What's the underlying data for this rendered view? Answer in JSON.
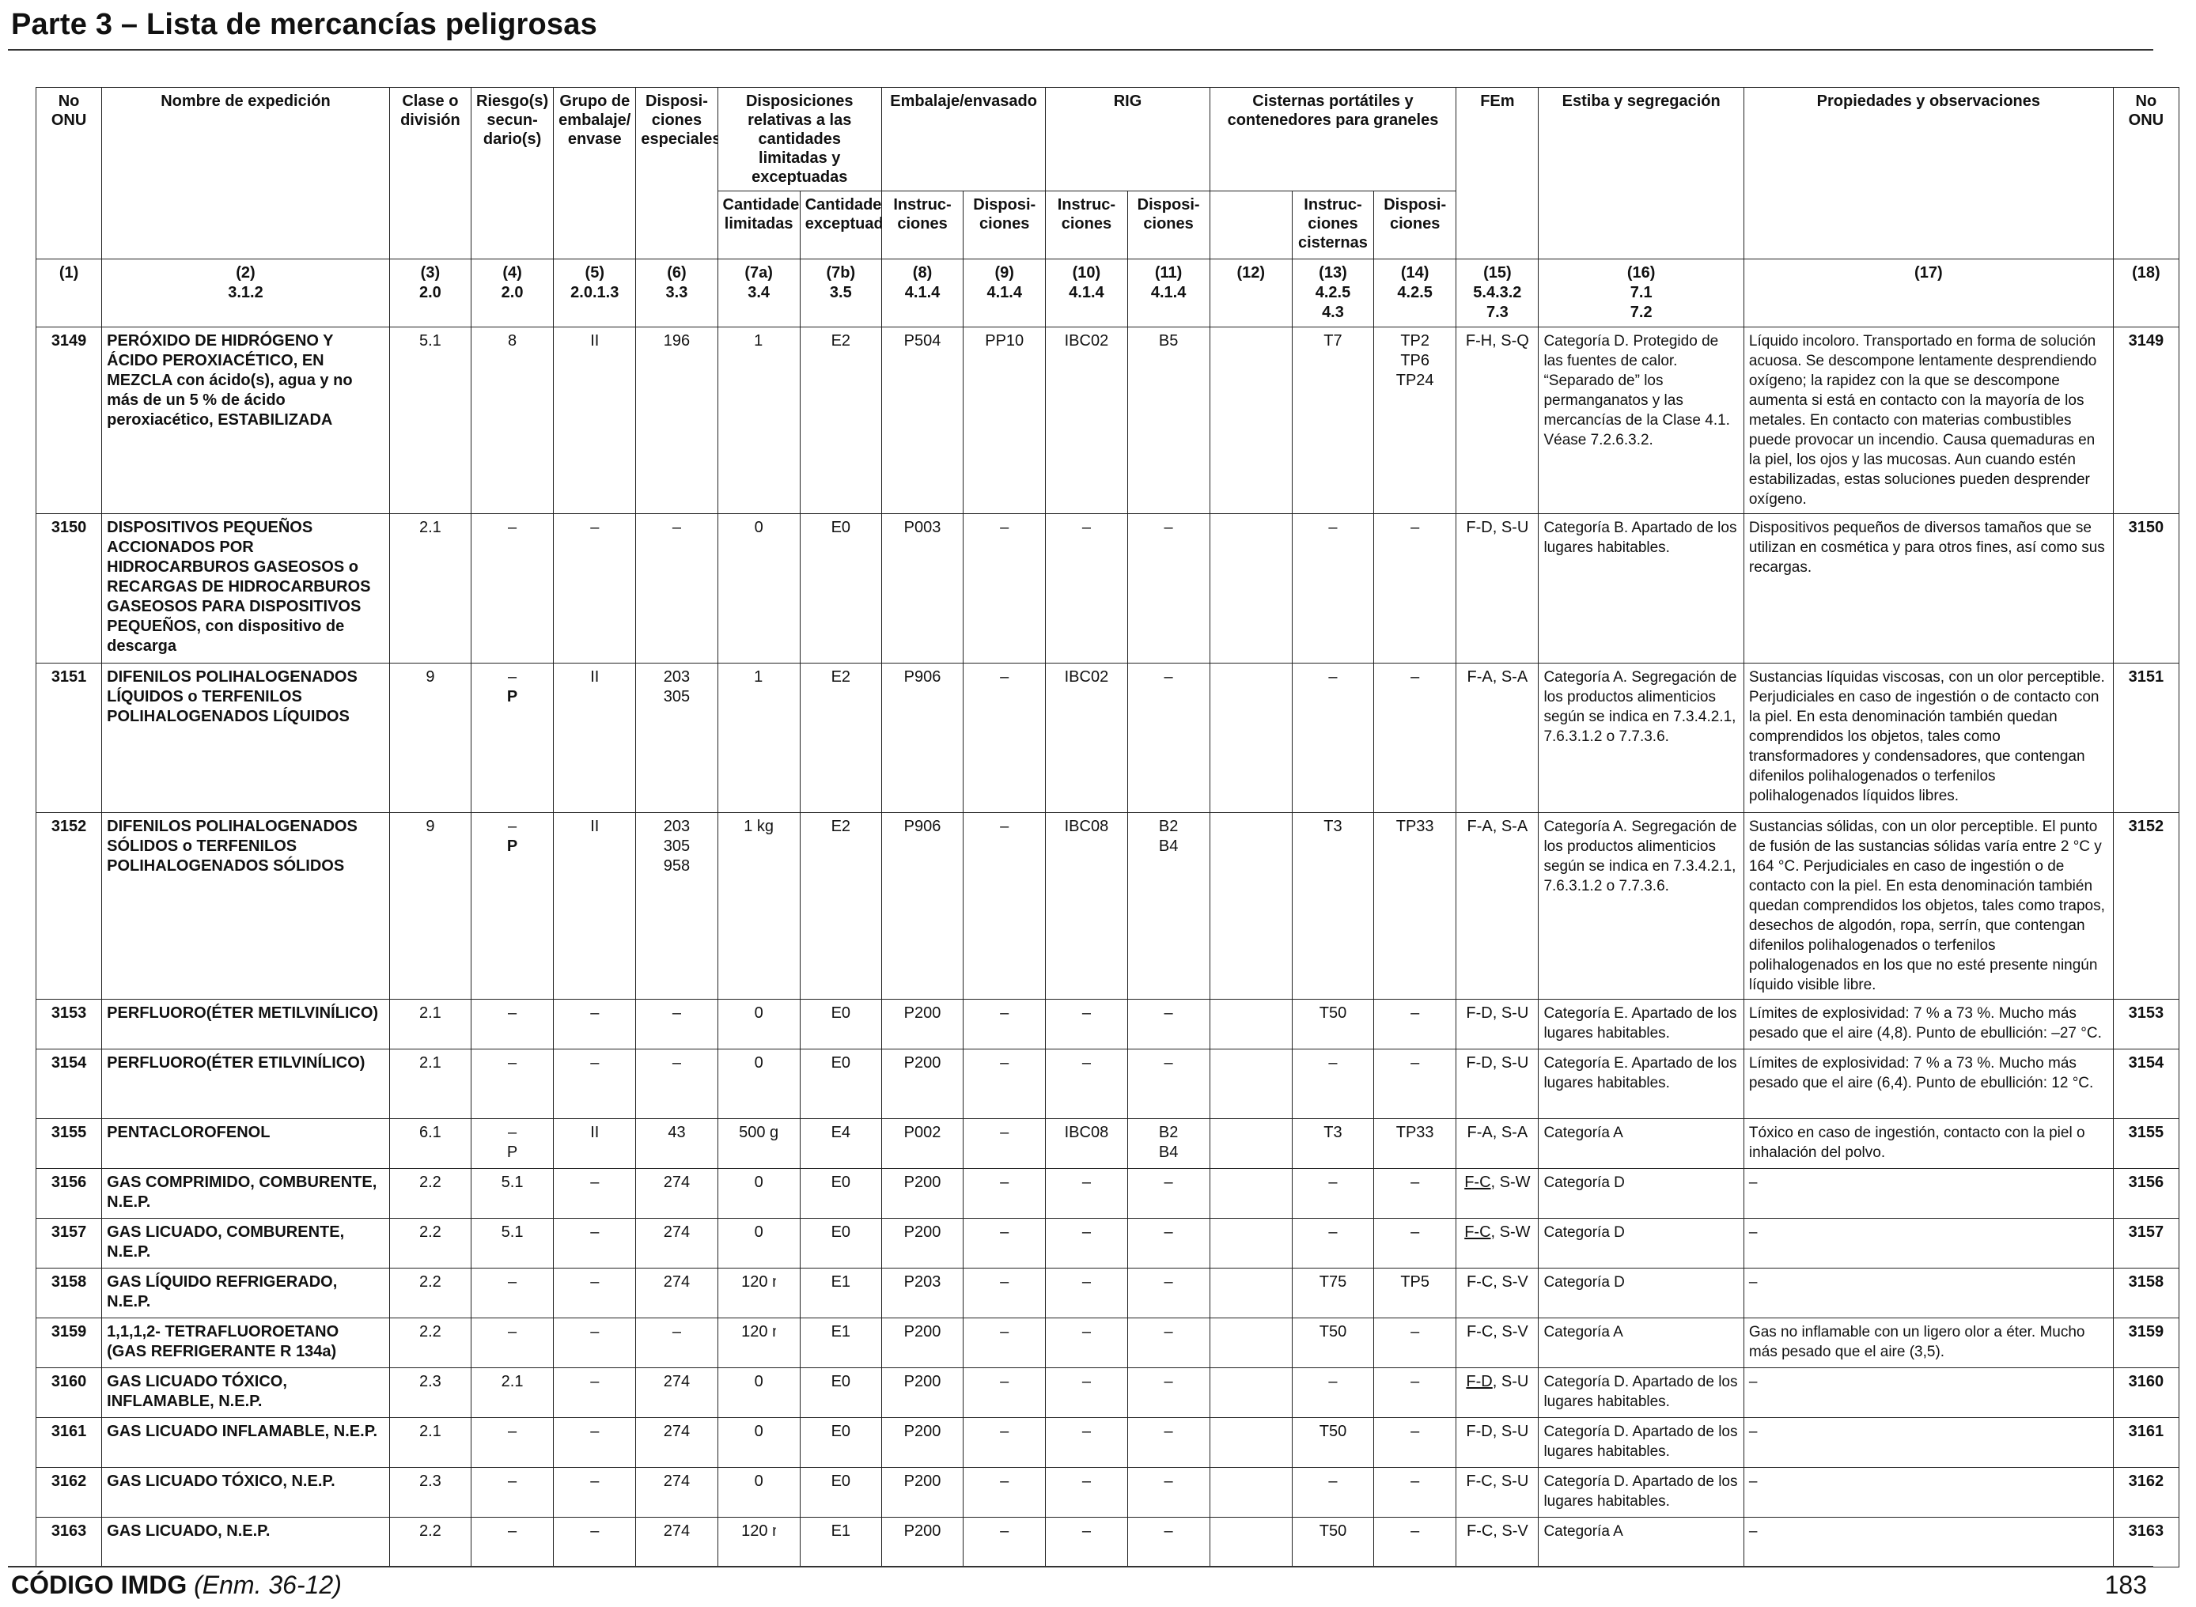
{
  "page": {
    "title": "Parte 3 – Lista de mercancías peligrosas",
    "footer_code": "CÓDIGO IMDG",
    "footer_amendment": "(Enm. 36-12)",
    "page_number": "183"
  },
  "headers": {
    "un_no": "No ONU",
    "shipping_name": "Nombre de expedición",
    "class": "Clase o división",
    "subsidiary_risk": "Riesgo(s) secun-dario(s)",
    "packing_group": "Grupo de embalaje/ envase",
    "special_provisions": "Disposi-ciones especiales",
    "limited_excepted": "Disposiciones relativas a las cantidades limitadas y exceptuadas",
    "limited_qty": "Cantidades limitadas",
    "excepted_qty": "Cantidades exceptuadas",
    "packaging": "Embalaje/envasado",
    "packaging_instr": "Instruc-ciones",
    "packaging_prov": "Disposi-ciones",
    "ibc": "RIG",
    "ibc_instr": "Instruc-ciones",
    "ibc_prov": "Disposi-ciones",
    "tanks": "Cisternas portátiles y contenedores para graneles",
    "tank_instr": "Instruc-ciones cisternas",
    "tank_prov": "Disposi-ciones",
    "ems": "FEm",
    "stowage": "Estiba y segregación",
    "properties": "Propiedades y observaciones",
    "un_no_end": "No ONU"
  },
  "column_refs": [
    {
      "n": "(1)",
      "ref": ""
    },
    {
      "n": "(2)",
      "ref": "3.1.2"
    },
    {
      "n": "(3)",
      "ref": "2.0"
    },
    {
      "n": "(4)",
      "ref": "2.0"
    },
    {
      "n": "(5)",
      "ref": "2.0.1.3"
    },
    {
      "n": "(6)",
      "ref": "3.3"
    },
    {
      "n": "(7a)",
      "ref": "3.4"
    },
    {
      "n": "(7b)",
      "ref": "3.5"
    },
    {
      "n": "(8)",
      "ref": "4.1.4"
    },
    {
      "n": "(9)",
      "ref": "4.1.4"
    },
    {
      "n": "(10)",
      "ref": "4.1.4"
    },
    {
      "n": "(11)",
      "ref": "4.1.4"
    },
    {
      "n": "(12)",
      "ref": ""
    },
    {
      "n": "(13)",
      "ref": "4.2.5 4.3"
    },
    {
      "n": "(14)",
      "ref": "4.2.5"
    },
    {
      "n": "(15)",
      "ref": "5.4.3.2 7.3"
    },
    {
      "n": "(16)",
      "ref": "7.1 7.2"
    },
    {
      "n": "(17)",
      "ref": ""
    },
    {
      "n": "(18)",
      "ref": ""
    }
  ],
  "rows": [
    {
      "un": "3149",
      "name": "PERÓXIDO DE HIDRÓGENO Y ÁCIDO PEROXIACÉTICO, EN MEZCLA con ácido(s), agua y no más de un 5 % de ácido peroxiacético, ESTABILIZADA",
      "class": "5.1",
      "sub": "8",
      "pg": "II",
      "sp": "196",
      "lq": "1 ℓ",
      "eq": "E2",
      "pi": "P504",
      "pp": "PP10",
      "ibc": "IBC02",
      "ibcp": "B5",
      "c12": "",
      "ti": "T7",
      "tp": "TP2 TP6 TP24",
      "ems": "F-H, S-Q",
      "stow": "Categoría D. Protegido de las fuentes de calor. “Separado de” los permanganatos y las mercancías de la Clase 4.1. Véase 7.2.6.3.2.",
      "props": "Líquido incoloro. Transportado en forma de solución acuosa. Se descompone lentamente desprendiendo oxígeno; la rapidez con la que se descompone aumenta si está en contacto con la mayoría de los metales. En contacto con materias combustibles puede provocar un incendio. Causa quemaduras en la piel, los ojos y las mucosas. Aun cuando estén estabilizadas, estas soluciones pueden desprender oxígeno."
    },
    {
      "un": "3150",
      "name": "DISPOSITIVOS PEQUEÑOS ACCIONADOS POR HIDROCARBUROS GASEOSOS o RECARGAS DE HIDROCARBUROS GASEOSOS PARA DISPOSITIVOS PEQUEÑOS, con dispositivo de descarga",
      "class": "2.1",
      "sub": "–",
      "pg": "–",
      "sp": "–",
      "lq": "0",
      "eq": "E0",
      "pi": "P003",
      "pp": "–",
      "ibc": "–",
      "ibcp": "–",
      "c12": "",
      "ti": "–",
      "tp": "–",
      "ems": "F-D, S-U",
      "stow": "Categoría B. Apartado de los lugares habitables.",
      "props": "Dispositivos pequeños de diversos tamaños que se utilizan en cosmética y para otros fines, así como sus recargas."
    },
    {
      "un": "3151",
      "name": "DIFENILOS POLIHALOGENADOS LÍQUIDOS o TERFENILOS POLIHALOGENADOS LÍQUIDOS",
      "class": "9",
      "sub": "–",
      "sub2": "P",
      "pg": "II",
      "sp": "203 305",
      "lq": "1 ℓ",
      "eq": "E2",
      "pi": "P906",
      "pp": "–",
      "ibc": "IBC02",
      "ibcp": "–",
      "c12": "",
      "ti": "–",
      "tp": "–",
      "ems": "F-A, S-A",
      "stow": "Categoría A. Segregación de los productos alimenticios según se indica en 7.3.4.2.1, 7.6.3.1.2 o 7.7.3.6.",
      "props": "Sustancias líquidas viscosas, con un olor perceptible. Perjudiciales en caso de ingestión o de contacto con la piel. En esta denominación también quedan comprendidos los objetos, tales como transformadores y condensadores, que contengan difenilos polihalogenados o terfenilos polihalogenados líquidos libres."
    },
    {
      "un": "3152",
      "name": "DIFENILOS POLIHALOGENADOS SÓLIDOS o TERFENILOS POLIHALOGENADOS SÓLIDOS",
      "class": "9",
      "sub": "–",
      "sub2": "P",
      "pg": "II",
      "sp": "203 305 958",
      "lq": "1 kg",
      "eq": "E2",
      "pi": "P906",
      "pp": "–",
      "ibc": "IBC08",
      "ibcp": "B2 B4",
      "c12": "",
      "ti": "T3",
      "tp": "TP33",
      "ems": "F-A, S-A",
      "stow": "Categoría A. Segregación de los productos alimenticios según se indica en 7.3.4.2.1, 7.6.3.1.2 o 7.7.3.6.",
      "props": "Sustancias sólidas, con un olor perceptible. El punto de fusión de las sustancias sólidas varía entre 2 °C y 164 °C. Perjudiciales en caso de ingestión o de contacto con la piel. En esta denominación también quedan comprendidos los objetos, tales como trapos, desechos de algodón, ropa, serrín, que contengan difenilos polihalogenados o terfenilos polihalogenados en los que no esté presente ningún líquido visible libre."
    },
    {
      "un": "3153",
      "name": "PERFLUORO(ÉTER METILVINÍLICO)",
      "class": "2.1",
      "sub": "–",
      "pg": "–",
      "sp": "–",
      "lq": "0",
      "eq": "E0",
      "pi": "P200",
      "pp": "–",
      "ibc": "–",
      "ibcp": "–",
      "c12": "",
      "ti": "T50",
      "tp": "–",
      "ems": "F-D, S-U",
      "stow": "Categoría E. Apartado de los lugares habitables.",
      "props": "Límites de explosividad: 7 % a 73 %. Mucho más pesado que el aire (4,8). Punto de ebullición: –27 °C."
    },
    {
      "un": "3154",
      "name": "PERFLUORO(ÉTER ETILVINÍLICO)",
      "class": "2.1",
      "sub": "–",
      "pg": "–",
      "sp": "–",
      "lq": "0",
      "eq": "E0",
      "pi": "P200",
      "pp": "–",
      "ibc": "–",
      "ibcp": "–",
      "c12": "",
      "ti": "–",
      "tp": "–",
      "ems": "F-D, S-U",
      "stow": "Categoría E. Apartado de los lugares habitables.",
      "props": "Límites de explosividad: 7 % a 73 %. Mucho más pesado que el aire (6,4). Punto de ebullición: 12 °C."
    },
    {
      "un": "3155",
      "name": "PENTACLOROFENOL",
      "class": "6.1",
      "sub": "–",
      "sub2": "P",
      "pg": "II",
      "sp": "43",
      "lq": "500 g",
      "eq": "E4",
      "pi": "P002",
      "pp": "–",
      "ibc": "IBC08",
      "ibcp": "B2 B4",
      "c12": "",
      "ti": "T3",
      "tp": "TP33",
      "ems": "F-A, S-A",
      "stow": "Categoría A",
      "props": "Tóxico en caso de ingestión, contacto con la piel o inhalación del polvo."
    },
    {
      "un": "3156",
      "name": "GAS COMPRIMIDO, COMBURENTE, N.E.P.",
      "class": "2.2",
      "sub": "5.1",
      "pg": "–",
      "sp": "274",
      "lq": "0",
      "eq": "E0",
      "pi": "P200",
      "pp": "–",
      "ibc": "–",
      "ibcp": "–",
      "c12": "",
      "ti": "–",
      "tp": "–",
      "ems_u": "F-C",
      "ems_r": ", S-W",
      "stow": "Categoría D",
      "props": "–"
    },
    {
      "un": "3157",
      "name": "GAS LICUADO, COMBURENTE, N.E.P.",
      "class": "2.2",
      "sub": "5.1",
      "pg": "–",
      "sp": "274",
      "lq": "0",
      "eq": "E0",
      "pi": "P200",
      "pp": "–",
      "ibc": "–",
      "ibcp": "–",
      "c12": "",
      "ti": "–",
      "tp": "–",
      "ems_u": "F-C",
      "ems_r": ", S-W",
      "stow": "Categoría D",
      "props": "–"
    },
    {
      "un": "3158",
      "name": "GAS LÍQUIDO REFRIGERADO, N.E.P.",
      "class": "2.2",
      "sub": "–",
      "pg": "–",
      "sp": "274",
      "lq": "120 mℓ",
      "eq": "E1",
      "pi": "P203",
      "pp": "–",
      "ibc": "–",
      "ibcp": "–",
      "c12": "",
      "ti": "T75",
      "tp": "TP5",
      "ems": "F-C, S-V",
      "stow": "Categoría D",
      "props": "–"
    },
    {
      "un": "3159",
      "name": "1,1,1,2- TETRAFLUOROETANO",
      "name_sub": "(GAS REFRIGERANTE R 134a)",
      "class": "2.2",
      "sub": "–",
      "pg": "–",
      "sp": "–",
      "lq": "120 mℓ",
      "eq": "E1",
      "pi": "P200",
      "pp": "–",
      "ibc": "–",
      "ibcp": "–",
      "c12": "",
      "ti": "T50",
      "tp": "–",
      "ems": "F-C, S-V",
      "stow": "Categoría A",
      "props": "Gas no inflamable con un ligero olor a éter. Mucho más pesado que el aire (3,5)."
    },
    {
      "un": "3160",
      "name": "GAS LICUADO TÓXICO, INFLAMABLE, N.E.P.",
      "class": "2.3",
      "sub": "2.1",
      "pg": "–",
      "sp": "274",
      "lq": "0",
      "eq": "E0",
      "pi": "P200",
      "pp": "–",
      "ibc": "–",
      "ibcp": "–",
      "c12": "",
      "ti": "–",
      "tp": "–",
      "ems_u": "F-D",
      "ems_r": ", S-U",
      "stow": "Categoría D. Apartado de los lugares habitables.",
      "props": "–"
    },
    {
      "un": "3161",
      "name": "GAS LICUADO INFLAMABLE, N.E.P.",
      "class": "2.1",
      "sub": "–",
      "pg": "–",
      "sp": "274",
      "lq": "0",
      "eq": "E0",
      "pi": "P200",
      "pp": "–",
      "ibc": "–",
      "ibcp": "–",
      "c12": "",
      "ti": "T50",
      "tp": "–",
      "ems": "F-D, S-U",
      "stow": "Categoría D. Apartado de los lugares habitables.",
      "props": "–"
    },
    {
      "un": "3162",
      "name": "GAS LICUADO TÓXICO, N.E.P.",
      "class": "2.3",
      "sub": "–",
      "pg": "–",
      "sp": "274",
      "lq": "0",
      "eq": "E0",
      "pi": "P200",
      "pp": "–",
      "ibc": "–",
      "ibcp": "–",
      "c12": "",
      "ti": "–",
      "tp": "–",
      "ems": "F-C, S-U",
      "stow": "Categoría D. Apartado de los lugares habitables.",
      "props": "–"
    },
    {
      "un": "3163",
      "name": "GAS LICUADO, N.E.P.",
      "class": "2.2",
      "sub": "–",
      "pg": "–",
      "sp": "274",
      "lq": "120 mℓ",
      "eq": "E1",
      "pi": "P200",
      "pp": "–",
      "ibc": "–",
      "ibcp": "–",
      "c12": "",
      "ti": "T50",
      "tp": "–",
      "ems": "F-C, S-V",
      "stow": "Categoría A",
      "props": "–"
    }
  ]
}
